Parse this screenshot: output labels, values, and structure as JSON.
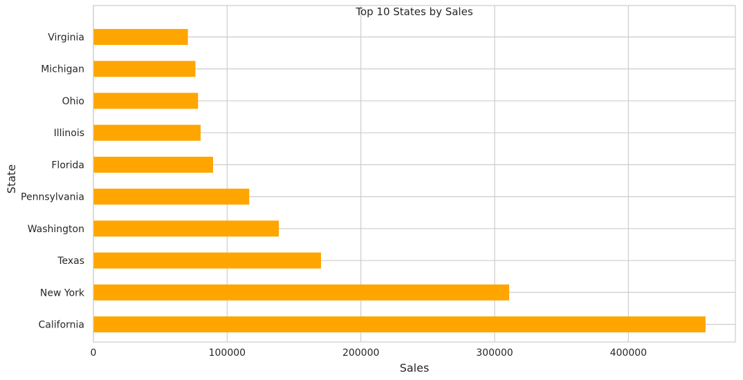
{
  "chart_data": {
    "type": "bar",
    "orientation": "horizontal",
    "title": "Top 10 States by Sales",
    "xlabel": "Sales",
    "ylabel": "State",
    "categories": [
      "California",
      "New York",
      "Texas",
      "Washington",
      "Pennsylvania",
      "Florida",
      "Illinois",
      "Ohio",
      "Michigan",
      "Virginia"
    ],
    "values": [
      457688,
      310876,
      170188,
      138641,
      116512,
      89474,
      80166,
      78258,
      76270,
      70637
    ],
    "xlim": [
      0,
      480000
    ],
    "xticks": [
      0,
      100000,
      200000,
      300000,
      400000
    ],
    "xtick_labels": [
      "0",
      "100000",
      "200000",
      "300000",
      "400000"
    ],
    "grid": true,
    "bar_color": "#FFA500"
  }
}
